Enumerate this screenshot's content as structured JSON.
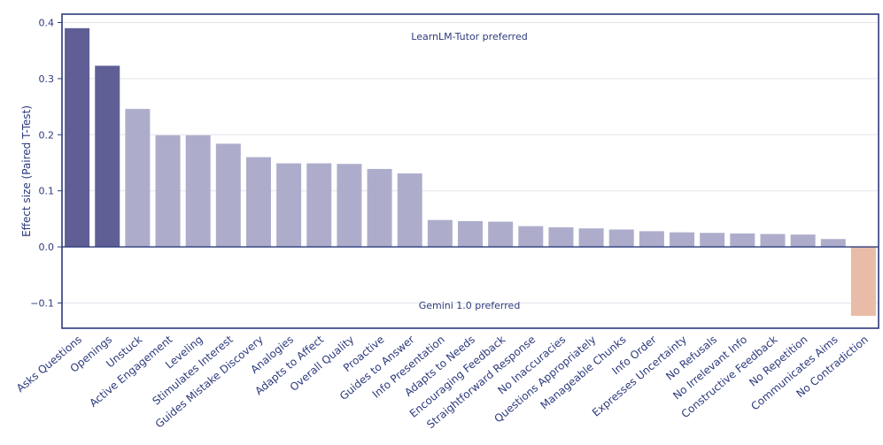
{
  "chart_data": {
    "type": "bar",
    "title": "",
    "xlabel": "",
    "ylabel": "Effect size (Paired T-Test)",
    "ylim": [
      -0.145,
      0.415
    ],
    "yticks": [
      -0.1,
      0.0,
      0.1,
      0.2,
      0.3,
      0.4
    ],
    "ytick_labels": [
      "−0.1",
      "0.0",
      "0.1",
      "0.2",
      "0.3",
      "0.4"
    ],
    "grid": true,
    "annotations": {
      "top": "LearnLM-Tutor preferred",
      "bottom": "Gemini 1.0 preferred"
    },
    "categories": [
      "Asks Questions",
      "Openings",
      "Unstuck",
      "Active Engagement",
      "Leveling",
      "Stimulates Interest",
      "Guides Mistake Discovery",
      "Analogies",
      "Adapts to Affect",
      "Overall Quality",
      "Proactive",
      "Guides to Answer",
      "Info Presentation",
      "Adapts to Needs",
      "Encouraging Feedback",
      "Straightforward Response",
      "No Inaccuracies",
      "Questions Appropriately",
      "Manageable Chunks",
      "Info Order",
      "Expresses Uncertainty",
      "No Refusals",
      "No Irrelevant Info",
      "Constructive Feedback",
      "No Repetition",
      "Communicates Aims",
      "No Contradiction"
    ],
    "values": [
      0.39,
      0.323,
      0.246,
      0.199,
      0.199,
      0.184,
      0.16,
      0.149,
      0.149,
      0.148,
      0.139,
      0.131,
      0.048,
      0.046,
      0.045,
      0.037,
      0.035,
      0.033,
      0.031,
      0.028,
      0.026,
      0.025,
      0.024,
      0.023,
      0.022,
      0.014,
      -0.123
    ],
    "bar_colors": [
      "#5f5f96",
      "#5f5f96",
      "#adadcb",
      "#adadcb",
      "#adadcb",
      "#adadcb",
      "#adadcb",
      "#adadcb",
      "#adadcb",
      "#adadcb",
      "#adadcb",
      "#adadcb",
      "#adadcb",
      "#adadcb",
      "#adadcb",
      "#adadcb",
      "#adadcb",
      "#adadcb",
      "#adadcb",
      "#adadcb",
      "#adadcb",
      "#adadcb",
      "#adadcb",
      "#adadcb",
      "#adadcb",
      "#adadcb",
      "#e8bca8"
    ],
    "colors": {
      "frame": "#2d3a7c",
      "grid": "#e3e3ec",
      "text": "#2d3a7c"
    }
  }
}
